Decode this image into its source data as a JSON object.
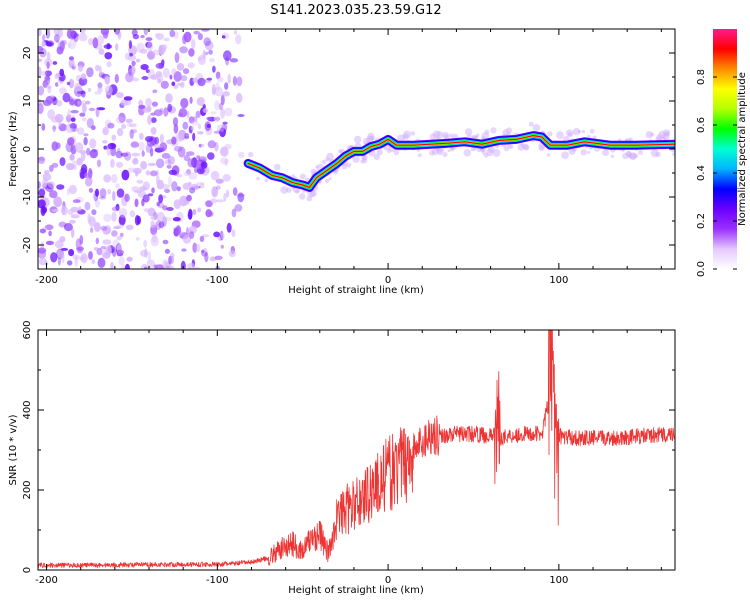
{
  "figure_title": "S141.2023.035.23.59.G12",
  "chart_data": [
    {
      "type": "heatmap",
      "title": "S141.2023.035.23.59.G12",
      "xlabel": "Height of straight line (km)",
      "ylabel": "Frequency (Hz)",
      "xlim": [
        -205,
        168
      ],
      "ylim": [
        -25,
        25
      ],
      "xticks": [
        -200,
        -100,
        0,
        100
      ],
      "yticks": [
        -20,
        -10,
        0,
        10,
        20
      ],
      "xtick_labels": [
        "-200",
        "-100",
        "0",
        "100"
      ],
      "ytick_labels": [
        "-20",
        "-10",
        "0",
        "10",
        "20"
      ],
      "colorbar": {
        "label": "Normalized spectral amplitude",
        "range": [
          0,
          1
        ],
        "ticks": [
          0.0,
          0.2,
          0.4,
          0.6,
          0.8
        ],
        "tick_labels": [
          "0.0",
          "0.2",
          "0.4",
          "0.6",
          "0.8"
        ],
        "colormap_stops": [
          "#ffffff",
          "#e4c8ff",
          "#9b30ff",
          "#6a00ff",
          "#0000ff",
          "#00b4ff",
          "#00ffd2",
          "#00ff00",
          "#b4ff00",
          "#ffff00",
          "#ff8c00",
          "#ff0000",
          "#ff1a8c"
        ]
      },
      "noise_region_x": [
        -205,
        -82
      ],
      "noise_region_color": "#7b22ff",
      "ridge": {
        "x": [
          -82,
          -75,
          -68,
          -62,
          -56,
          -50,
          -46,
          -42,
          -36,
          -30,
          -25,
          -20,
          -15,
          -10,
          -5,
          0,
          5,
          15,
          25,
          35,
          45,
          55,
          65,
          75,
          85,
          90,
          95,
          105,
          115,
          130,
          145,
          168
        ],
        "y": [
          -3.0,
          -4.0,
          -5.5,
          -6.0,
          -7.0,
          -7.5,
          -8.0,
          -6.0,
          -4.5,
          -3.0,
          -1.5,
          -0.5,
          -0.5,
          0.5,
          1.0,
          2.0,
          0.8,
          0.8,
          1.0,
          1.2,
          1.5,
          1.0,
          1.8,
          2.0,
          2.8,
          2.5,
          0.8,
          0.8,
          1.5,
          0.8,
          0.8,
          1.0
        ]
      }
    },
    {
      "type": "line",
      "xlabel": "Height of straight line (km)",
      "ylabel": "SNR (10 * v/v)",
      "xlim": [
        -205,
        168
      ],
      "ylim": [
        0,
        600
      ],
      "xticks": [
        -200,
        -100,
        0,
        100
      ],
      "yticks": [
        0,
        200,
        400,
        600
      ],
      "xtick_labels": [
        "-200",
        "-100",
        "0",
        "100"
      ],
      "ytick_labels": [
        "0",
        "200",
        "400",
        "600"
      ],
      "color": "#ee3333",
      "series": [
        {
          "name": "SNR",
          "x": [
            -205,
            -180,
            -150,
            -120,
            -100,
            -90,
            -80,
            -70,
            -65,
            -60,
            -55,
            -50,
            -45,
            -40,
            -35,
            -30,
            -25,
            -20,
            -15,
            -10,
            -5,
            0,
            5,
            10,
            15,
            20,
            25,
            30,
            40,
            50,
            60,
            63,
            64,
            65,
            70,
            80,
            90,
            94,
            96,
            97,
            98,
            100,
            110,
            130,
            150,
            168
          ],
          "y": [
            12,
            12,
            13,
            14,
            14,
            16,
            20,
            30,
            45,
            60,
            65,
            45,
            80,
            90,
            40,
            130,
            150,
            160,
            180,
            200,
            220,
            240,
            250,
            270,
            300,
            320,
            340,
            335,
            340,
            340,
            335,
            340,
            420,
            330,
            335,
            340,
            340,
            420,
            560,
            320,
            350,
            335,
            330,
            330,
            335,
            340
          ]
        }
      ]
    }
  ]
}
